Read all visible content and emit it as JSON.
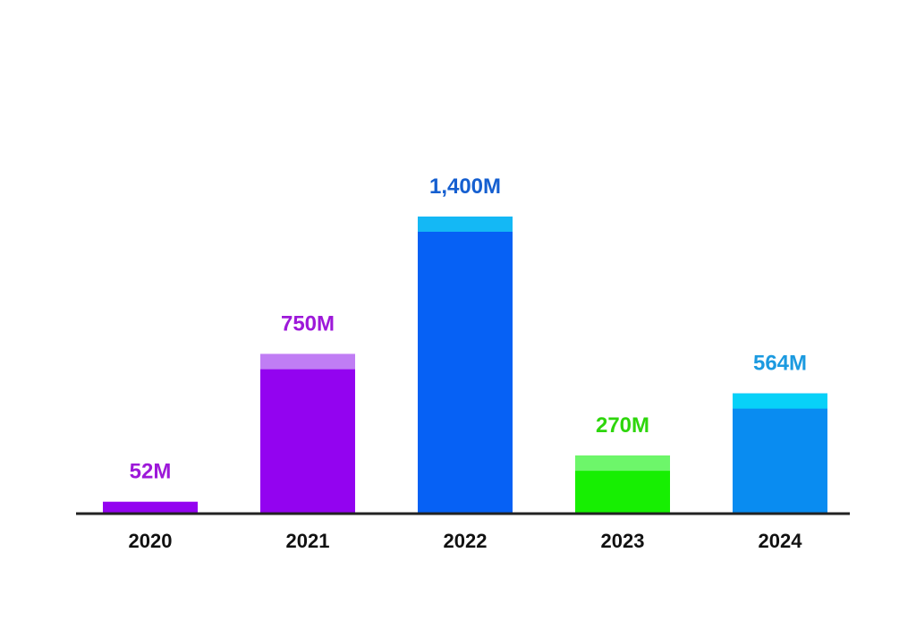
{
  "chart_data": {
    "type": "bar",
    "categories": [
      "2020",
      "2021",
      "2022",
      "2023",
      "2024"
    ],
    "values": [
      52,
      750,
      1400,
      270,
      564
    ],
    "value_labels": [
      "52M",
      "750M",
      "1,400M",
      "270M",
      "564M"
    ],
    "units": "M",
    "title": "",
    "xlabel": "",
    "ylabel": "",
    "grid": false,
    "legend": "none",
    "colors": {
      "bars": [
        "#9303f0",
        "#9303f0",
        "#0661f5",
        "#17ef02",
        "#098cf1"
      ],
      "bar_caps": [
        "#b765f2",
        "#c07df4",
        "#14b8f5",
        "#6df66a",
        "#08d1f8"
      ],
      "labels": [
        "#9d18d9",
        "#9d18d9",
        "#155fd0",
        "#2ed60c",
        "#1b9ae0"
      ],
      "axis": "#222222",
      "ticks": "#111111"
    }
  }
}
